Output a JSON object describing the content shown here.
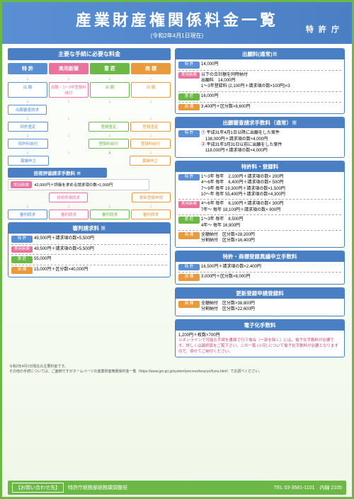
{
  "header": {
    "title": "産業財産権関係料金一覧",
    "date": "(令和2年4月1日現在)",
    "agency": "特 許 庁"
  },
  "left": {
    "mainTitle": "主要な手続に必要な料金",
    "cats": [
      "特 許",
      "実用新案",
      "意 匠",
      "商 標"
    ],
    "flow1": [
      "出 願",
      "出願・1～3年登録料納付",
      "出 願",
      "出 願"
    ],
    "flow2": [
      "出願審査請求"
    ],
    "flow3": [
      "特許査定",
      "",
      "登録査定",
      "登録査定"
    ],
    "flow4": [
      "特許料納付",
      "",
      "登録料納付",
      "登録料納付"
    ],
    "flow5": [
      "異議申立",
      "",
      "",
      "異議申立"
    ],
    "techTitle": "技術評価請求手数料 ※",
    "techBody": "42,000円＋評価を求める請求項の数×1,000円",
    "techReq": "技術評価請求",
    "renewal": "更新登録申請",
    "trial": [
      "審判請求",
      "審判請求",
      "審判請求",
      "審判請求"
    ],
    "trialTitle": "審判請求料 ※",
    "trialRows": [
      {
        "tag": "特 許",
        "txt": "49,500円＋請求項の数×5,500円"
      },
      {
        "tag": "実用新案",
        "txt": "49,500円＋請求項の数×5,500円"
      },
      {
        "tag": "意 匠",
        "txt": "55,000円"
      },
      {
        "tag": "商 標",
        "txt": "15,000円＋区分数×40,000円"
      }
    ]
  },
  "right": {
    "box1": {
      "title": "出願料(通常)※",
      "rows": [
        {
          "tag": "特 許",
          "cls": "t-pat",
          "txt": "14,000円"
        },
        {
          "tag": "実用新案",
          "cls": "t-util",
          "txt": "以下の合計額を同時納付\n出願料　14,000円\n1～3年登録料 (2,100円＋請求項の数×100円)×3"
        },
        {
          "tag": "意 匠",
          "cls": "t-des",
          "txt": "16,000円"
        },
        {
          "tag": "商 標",
          "cls": "t-tm",
          "txt": "3,400円＋区分数×8,600円"
        }
      ]
    },
    "box2": {
      "title": "出願審査請求手数料（通常）※",
      "rows": [
        {
          "tag": "特 許",
          "cls": "t-pat",
          "txt": "① 平成31年4月1日以降に出願をした案件\n　138,000円＋請求項の数×4,000円\n② 平成31年3月31日以前に出願をした案件\n　118,000円＋請求項の数×4,000円"
        }
      ]
    },
    "box3": {
      "title": "特許料・登録料",
      "rows": [
        {
          "tag": "特 許",
          "cls": "t-pat",
          "txt": "1～3年 毎年　2,100円＋請求項の数× 200円\n4～6年 毎年　6,400円＋請求項の数× 500円\n7～9年 毎年 19,300円＋請求項の数×1,500円\n10～年 毎年 55,400円＋請求項の数×4,300円"
        },
        {
          "tag": "実用新案",
          "cls": "t-util",
          "txt": "4～6年 毎年　6,100円＋請求項の数× 300円\n7年～ 毎年 18,100円＋請求項の数× 900円"
        },
        {
          "tag": "意 匠",
          "cls": "t-des",
          "txt": "1～3年 毎年　8,500円\n4年～ 毎年 16,900円"
        },
        {
          "tag": "商 標",
          "cls": "t-tm",
          "txt": "全額納付　区分数×28,200円\n分割納付　区分数×16,400円"
        }
      ]
    },
    "box4": {
      "title": "特許・商標登録異議申立手数料",
      "rows": [
        {
          "tag": "特 許",
          "cls": "t-pat",
          "txt": "16,500円＋請求項の数×2,400円"
        },
        {
          "tag": "商 標",
          "cls": "t-tm",
          "txt": "3,000円＋区分数×8,000円"
        }
      ]
    },
    "box5": {
      "title": "更新登録申請登録料",
      "rows": [
        {
          "tag": "商 標",
          "cls": "t-tm",
          "txt": "全額納付　区分数×38,800円\n分割納付　区分数×22,600円"
        }
      ]
    },
    "box6": {
      "title": "電子化手数料",
      "body": "1,200円＋枚数×700円",
      "note": "※オンラインで可能な手続を書面で行う場合（一部を除く）には、電子化手数料が必要です。詳しくは最終頁をご覧下さい。この一覧 (※印) について電子化手数料が必要となりますので、併せてご納付ください。"
    }
  },
  "note1": "令和2年4月1日現在の主要料金です。",
  "note2": "その他の手続については、ご面倒ですがホームページの産業財産権関係料金一覧（https://www.jpo.go.jp/system/process/tesuryo/hyou.html）でお調べください。",
  "footer": {
    "label": "【お問い合わせ先】",
    "text": "特許庁総務部総務課調整班",
    "tel": "TEL 03-3581-1101　内線 2105"
  }
}
